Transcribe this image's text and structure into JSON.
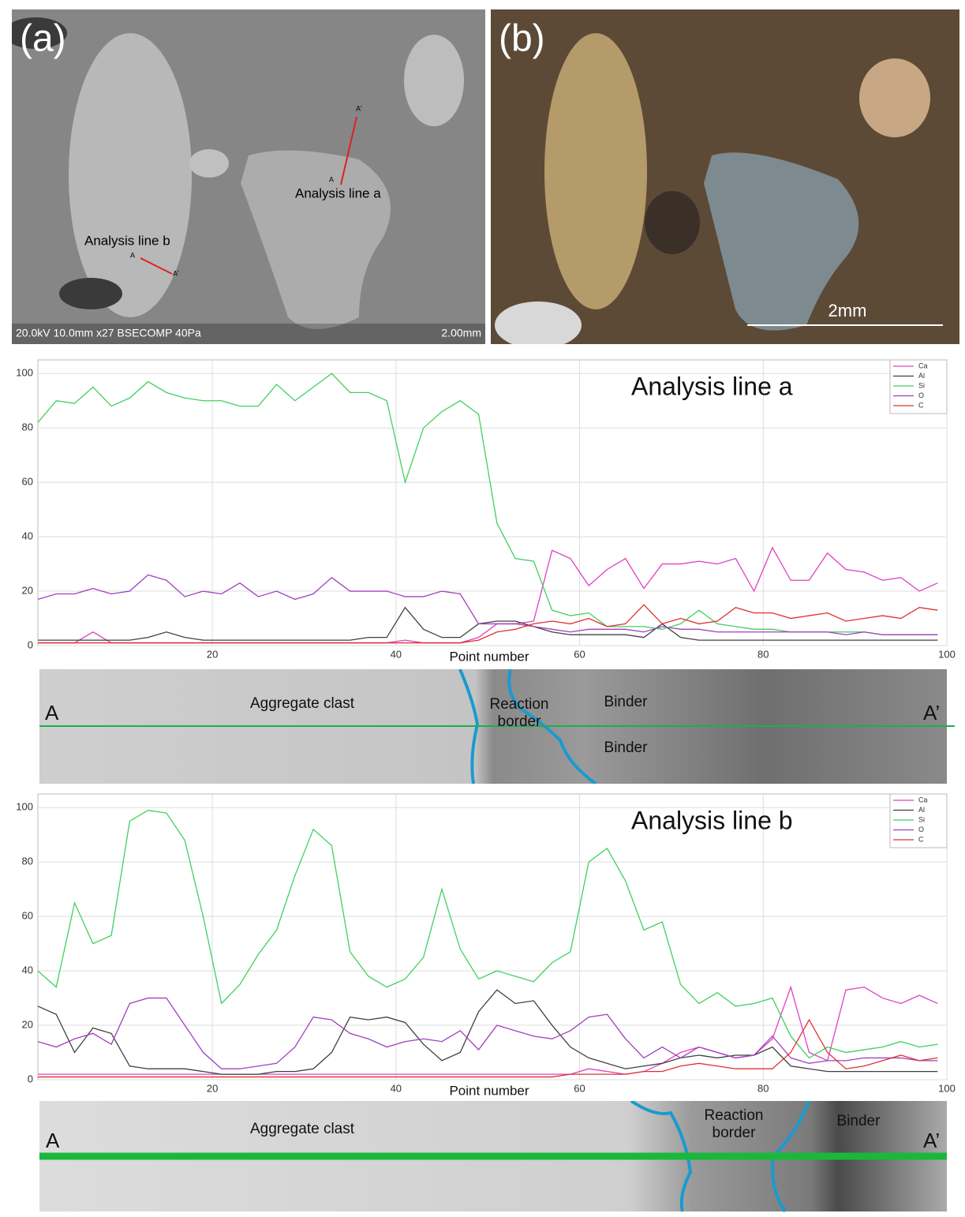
{
  "figure": {
    "panel_a": {
      "label": "(a)",
      "line_a": "Analysis line a",
      "line_b": "Analysis line b",
      "start": "A",
      "end": "A'",
      "caption": "20.0kV 10.0mm x27 BSECOMP 40Pa",
      "scale": "2.00mm"
    },
    "panel_b": {
      "label": "(b)",
      "scale": "2mm"
    },
    "strips": [
      {
        "start": "A",
        "end": "A’",
        "clast": "Aggregate clast",
        "binder": "Binder",
        "border": "Reaction border"
      },
      {
        "start": "A",
        "end": "A’",
        "clast": "Aggregate clast",
        "binder": "Binder",
        "border": "Reaction border"
      }
    ]
  },
  "chart_data": [
    {
      "type": "line",
      "title": "Analysis line a",
      "x_label": "Point number",
      "x": [
        1,
        3,
        5,
        7,
        9,
        11,
        13,
        15,
        17,
        19,
        21,
        23,
        25,
        27,
        29,
        31,
        33,
        35,
        37,
        39,
        41,
        43,
        45,
        47,
        49,
        51,
        53,
        55,
        57,
        59,
        61,
        63,
        65,
        67,
        69,
        71,
        73,
        75,
        77,
        79,
        81,
        83,
        85,
        87,
        89,
        91,
        93,
        95,
        97,
        99
      ],
      "xlim": [
        1,
        100
      ],
      "xticks": [
        20,
        40,
        60,
        80,
        100
      ],
      "ylim": [
        0,
        105
      ],
      "yticks": [
        0,
        20,
        40,
        60,
        80,
        100
      ],
      "grid": true,
      "legend": "top-right",
      "series": [
        {
          "name": "Ca",
          "color": "#e040c0",
          "values": [
            1,
            1,
            1,
            5,
            1,
            1,
            1,
            1,
            1,
            1,
            1,
            1,
            1,
            1,
            1,
            1,
            1,
            1,
            1,
            1,
            2,
            1,
            1,
            1,
            3,
            8,
            8,
            9,
            35,
            32,
            22,
            28,
            32,
            21,
            30,
            30,
            31,
            30,
            32,
            20,
            36,
            24,
            24,
            34,
            28,
            27,
            24,
            25,
            20,
            23
          ]
        },
        {
          "name": "Al",
          "color": "#404040",
          "values": [
            2,
            2,
            2,
            2,
            2,
            2,
            3,
            5,
            3,
            2,
            2,
            2,
            2,
            2,
            2,
            2,
            2,
            2,
            3,
            3,
            14,
            6,
            3,
            3,
            8,
            9,
            9,
            7,
            5,
            4,
            4,
            4,
            4,
            3,
            8,
            3,
            2,
            2,
            2,
            2,
            2,
            2,
            2,
            2,
            2,
            2,
            2,
            2,
            2,
            2
          ]
        },
        {
          "name": "Si",
          "color": "#40d060",
          "values": [
            82,
            90,
            89,
            95,
            88,
            91,
            97,
            93,
            91,
            90,
            90,
            88,
            88,
            96,
            90,
            95,
            100,
            93,
            93,
            90,
            60,
            80,
            86,
            90,
            85,
            45,
            32,
            31,
            13,
            11,
            12,
            7,
            7,
            7,
            6,
            8,
            13,
            8,
            7,
            6,
            6,
            5,
            5,
            5,
            5,
            5,
            4,
            4,
            4,
            4
          ]
        },
        {
          "name": "O",
          "color": "#a040c0",
          "values": [
            17,
            19,
            19,
            21,
            19,
            20,
            26,
            24,
            18,
            20,
            19,
            23,
            18,
            20,
            17,
            19,
            25,
            20,
            20,
            20,
            18,
            18,
            20,
            19,
            8,
            8,
            8,
            7,
            6,
            5,
            6,
            6,
            6,
            5,
            7,
            6,
            6,
            5,
            5,
            5,
            5,
            5,
            5,
            5,
            4,
            5,
            4,
            4,
            4,
            4
          ]
        },
        {
          "name": "C",
          "color": "#e03030",
          "values": [
            1,
            1,
            1,
            1,
            1,
            1,
            1,
            1,
            1,
            1,
            1,
            1,
            1,
            1,
            1,
            1,
            1,
            1,
            1,
            1,
            1,
            1,
            1,
            1,
            2,
            5,
            6,
            8,
            9,
            8,
            10,
            7,
            8,
            15,
            8,
            10,
            8,
            9,
            14,
            12,
            12,
            10,
            11,
            12,
            9,
            10,
            11,
            10,
            14,
            13
          ]
        }
      ]
    },
    {
      "type": "line",
      "title": "Analysis line b",
      "x_label": "Point number",
      "x": [
        1,
        3,
        5,
        7,
        9,
        11,
        13,
        15,
        17,
        19,
        21,
        23,
        25,
        27,
        29,
        31,
        33,
        35,
        37,
        39,
        41,
        43,
        45,
        47,
        49,
        51,
        53,
        55,
        57,
        59,
        61,
        63,
        65,
        67,
        69,
        71,
        73,
        75,
        77,
        79,
        81,
        83,
        85,
        87,
        89,
        91,
        93,
        95,
        97,
        99
      ],
      "xlim": [
        1,
        100
      ],
      "xticks": [
        20,
        40,
        60,
        80,
        100
      ],
      "ylim": [
        0,
        105
      ],
      "yticks": [
        0,
        20,
        40,
        60,
        80,
        100
      ],
      "grid": true,
      "legend": "top-right",
      "series": [
        {
          "name": "Ca",
          "color": "#e040c0",
          "values": [
            2,
            2,
            2,
            2,
            2,
            2,
            2,
            2,
            2,
            2,
            2,
            2,
            2,
            2,
            2,
            2,
            2,
            2,
            2,
            2,
            2,
            2,
            2,
            2,
            2,
            2,
            2,
            2,
            2,
            2,
            4,
            3,
            2,
            3,
            6,
            10,
            12,
            10,
            8,
            9,
            15,
            34,
            10,
            7,
            33,
            34,
            30,
            28,
            31,
            28
          ]
        },
        {
          "name": "Al",
          "color": "#404040",
          "values": [
            27,
            24,
            10,
            19,
            17,
            5,
            4,
            4,
            4,
            3,
            2,
            2,
            2,
            3,
            3,
            4,
            10,
            23,
            22,
            23,
            21,
            13,
            7,
            10,
            25,
            33,
            28,
            29,
            20,
            12,
            8,
            6,
            4,
            5,
            6,
            8,
            9,
            8,
            9,
            9,
            12,
            5,
            4,
            3,
            3,
            3,
            3,
            3,
            3,
            3
          ]
        },
        {
          "name": "Si",
          "color": "#40d060",
          "values": [
            40,
            34,
            65,
            50,
            53,
            95,
            99,
            98,
            88,
            60,
            28,
            35,
            46,
            55,
            75,
            92,
            86,
            47,
            38,
            34,
            37,
            45,
            70,
            48,
            37,
            40,
            38,
            36,
            43,
            47,
            80,
            85,
            73,
            55,
            58,
            35,
            28,
            32,
            27,
            28,
            30,
            16,
            8,
            12,
            10,
            11,
            12,
            14,
            12,
            13
          ]
        },
        {
          "name": "O",
          "color": "#a040c0",
          "values": [
            14,
            12,
            15,
            17,
            13,
            28,
            30,
            30,
            20,
            10,
            4,
            4,
            5,
            6,
            12,
            23,
            22,
            17,
            15,
            12,
            14,
            15,
            14,
            18,
            11,
            20,
            18,
            16,
            15,
            18,
            23,
            24,
            15,
            8,
            12,
            8,
            12,
            10,
            8,
            9,
            16,
            8,
            6,
            7,
            7,
            8,
            8,
            8,
            7,
            7
          ]
        },
        {
          "name": "C",
          "color": "#e03030",
          "values": [
            1,
            1,
            1,
            1,
            1,
            1,
            1,
            1,
            1,
            1,
            1,
            1,
            1,
            1,
            1,
            1,
            1,
            1,
            1,
            1,
            1,
            1,
            1,
            1,
            1,
            1,
            1,
            1,
            1,
            2,
            2,
            2,
            2,
            3,
            3,
            5,
            6,
            5,
            4,
            4,
            4,
            10,
            22,
            10,
            4,
            5,
            7,
            9,
            7,
            8
          ]
        }
      ]
    }
  ]
}
